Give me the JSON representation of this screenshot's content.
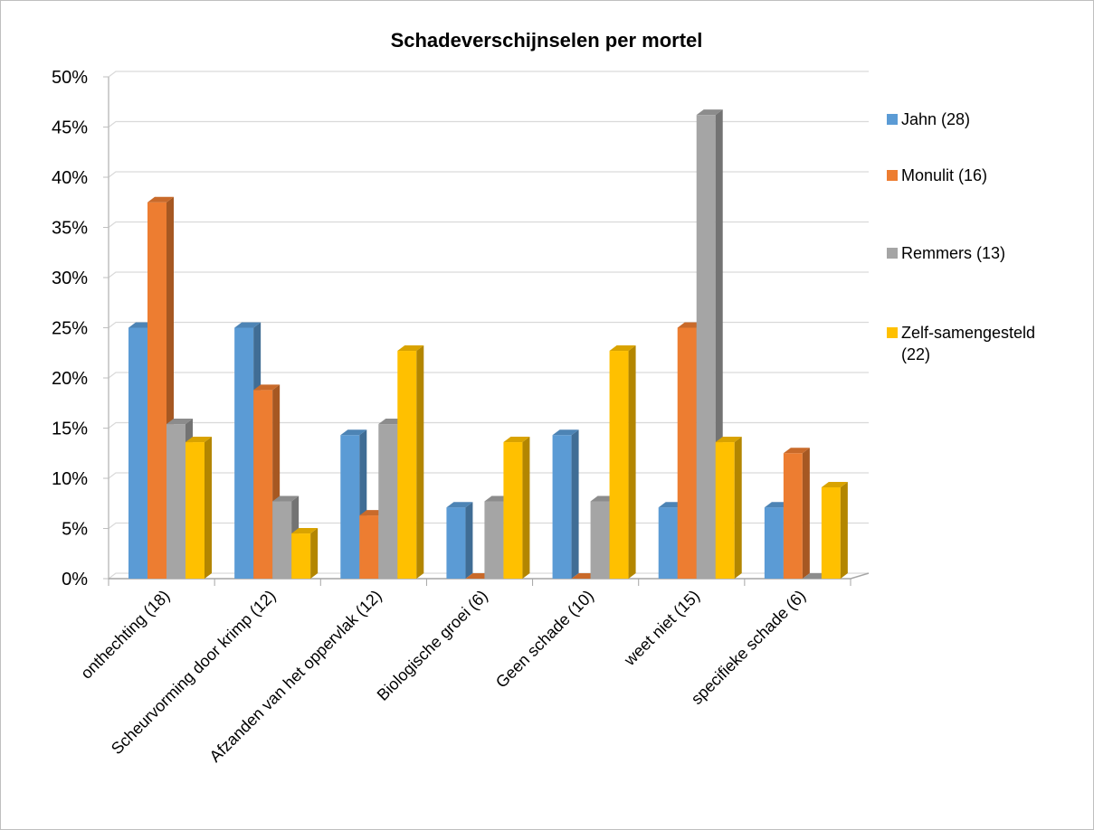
{
  "chart_data": {
    "type": "bar3d",
    "title": "Schadeverschijnselen per mortel",
    "categories": [
      "onthechting (18)",
      "Scheurvorming door krimp (12)",
      "Afzanden van het oppervlak (12)",
      "Biologische groei (6)",
      "Geen schade (10)",
      "weet niet (15)",
      "specifieke schade (6)"
    ],
    "series": [
      {
        "name": "Jahn (28)",
        "color": "#5b9bd5",
        "values": [
          25,
          25,
          14.3,
          7.1,
          14.3,
          7.1,
          7.1
        ]
      },
      {
        "name": "Monulit (16)",
        "color": "#ed7d31",
        "values": [
          37.5,
          18.8,
          6.3,
          0,
          0,
          25,
          12.5
        ]
      },
      {
        "name": "Remmers (13)",
        "color": "#a5a5a5",
        "values": [
          15.4,
          7.7,
          15.4,
          7.7,
          7.7,
          46.2,
          0
        ]
      },
      {
        "name": "Zelf-samengesteld (22)",
        "color": "#ffc000",
        "values": [
          13.6,
          4.5,
          22.7,
          13.6,
          22.7,
          13.6,
          9.1
        ]
      }
    ],
    "ylim": [
      0,
      50
    ],
    "yticks": [
      {
        "value": 0,
        "label": "0%"
      },
      {
        "value": 5,
        "label": "5%"
      },
      {
        "value": 10,
        "label": "10%"
      },
      {
        "value": 15,
        "label": "15%"
      },
      {
        "value": 20,
        "label": "20%"
      },
      {
        "value": 25,
        "label": "25%"
      },
      {
        "value": 30,
        "label": "30%"
      },
      {
        "value": 35,
        "label": "35%"
      },
      {
        "value": 40,
        "label": "40%"
      },
      {
        "value": 45,
        "label": "45%"
      },
      {
        "value": 50,
        "label": "50%"
      }
    ],
    "grid": true,
    "legend": "right"
  }
}
